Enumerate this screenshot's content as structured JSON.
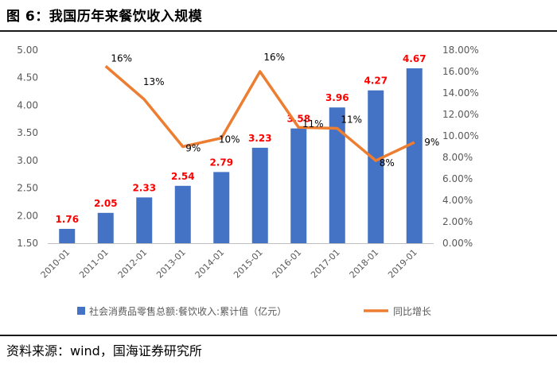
{
  "figure": {
    "title": "图 6：我国历年来餐饮收入规模",
    "source": "资料来源：wind，国海证券研究所"
  },
  "chart_data": {
    "type": "bar+line",
    "categories": [
      "2010-01",
      "2011-01",
      "2012-01",
      "2013-01",
      "2014-01",
      "2015-01",
      "2016-01",
      "2017-01",
      "2018-01",
      "2019-01"
    ],
    "series": [
      {
        "name": "社会消费品零售总额:餐饮收入:累计值（亿元）",
        "type": "bar",
        "axis": "left",
        "color": "#4472C4",
        "values": [
          1.76,
          2.05,
          2.33,
          2.54,
          2.79,
          3.23,
          3.58,
          3.96,
          4.27,
          4.67
        ],
        "labels": [
          "1.76",
          "2.05",
          "2.33",
          "2.54",
          "2.79",
          "3.23",
          "3.58",
          "3.96",
          "4.27",
          "4.67"
        ],
        "label_color": "#FF0000"
      },
      {
        "name": "同比增长",
        "type": "line",
        "axis": "right",
        "color": "#ED7D31",
        "values": [
          null,
          16.5,
          13.4,
          9.0,
          9.8,
          16.0,
          10.8,
          10.7,
          7.7,
          9.4
        ],
        "labels": [
          null,
          "16%",
          "13%",
          "9%",
          "10%",
          "16%",
          "11%",
          "11%",
          "8%",
          "9%"
        ]
      }
    ],
    "y_left": {
      "min": 1.5,
      "max": 5.0,
      "step": 0.5,
      "ticks": [
        "1.50",
        "2.00",
        "2.50",
        "3.00",
        "3.50",
        "4.00",
        "4.50",
        "5.00"
      ]
    },
    "y_right": {
      "min": 0,
      "max": 18,
      "step": 2,
      "ticks": [
        "0.00%",
        "2.00%",
        "4.00%",
        "6.00%",
        "8.00%",
        "10.00%",
        "12.00%",
        "14.00%",
        "16.00%",
        "18.00%"
      ]
    },
    "grid": false,
    "legend": "bottom"
  }
}
